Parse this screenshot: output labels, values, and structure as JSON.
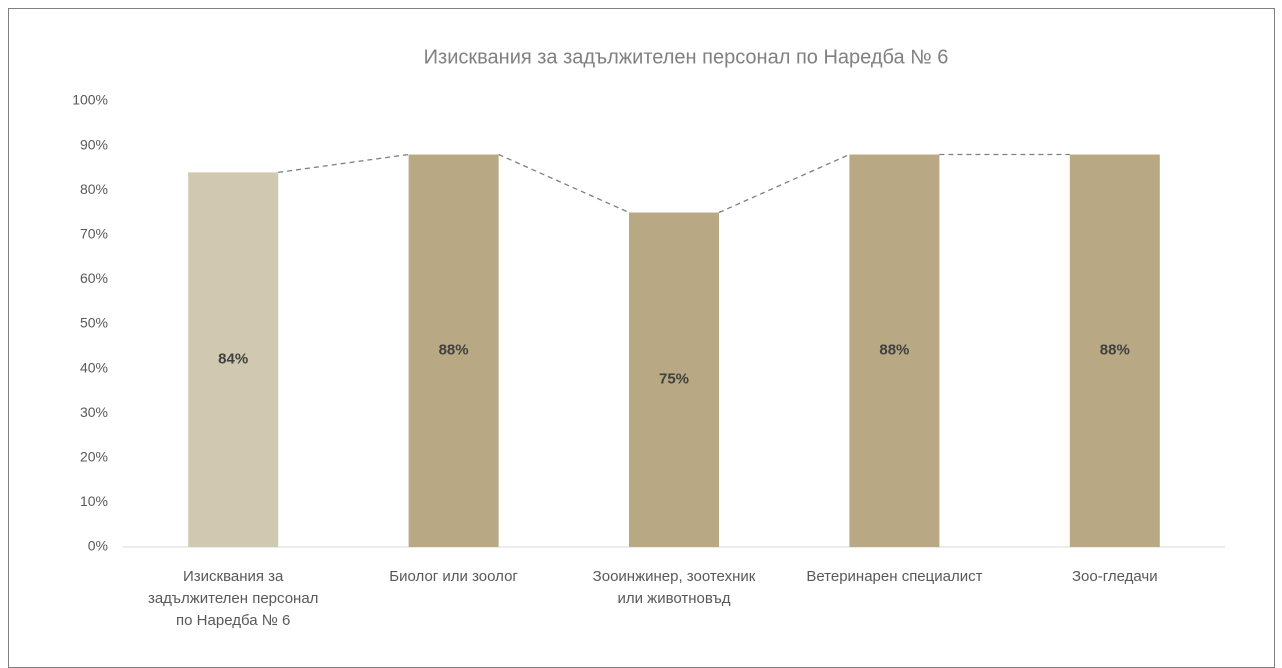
{
  "chart_data": {
    "type": "bar",
    "title": "Изисквания за задължителен персонал по Наредба № 6",
    "categories": [
      "Изисквания за задължителен персонал по Наредба № 6",
      "Биолог или зоолог",
      "Зооинжинер, зоотехник или животновъд",
      "Ветеринарен специалист",
      "Зоо-гледачи"
    ],
    "values": [
      84,
      88,
      75,
      88,
      88
    ],
    "value_labels": [
      "84%",
      "88%",
      "75%",
      "88%",
      "88%"
    ],
    "colors": [
      "#d0c8b0",
      "#b8a883",
      "#b8a883",
      "#b8a883",
      "#b8a883"
    ],
    "connector_line": true,
    "ylim": [
      0,
      100
    ],
    "yticks": [
      {
        "value": 0,
        "label": "0%"
      },
      {
        "value": 10,
        "label": "10%"
      },
      {
        "value": 20,
        "label": "20%"
      },
      {
        "value": 30,
        "label": "30%"
      },
      {
        "value": 40,
        "label": "40%"
      },
      {
        "value": 50,
        "label": "50%"
      },
      {
        "value": 60,
        "label": "60%"
      },
      {
        "value": 70,
        "label": "70%"
      },
      {
        "value": 80,
        "label": "80%"
      },
      {
        "value": 90,
        "label": "90%"
      },
      {
        "value": 100,
        "label": "100%"
      }
    ],
    "grid": false
  }
}
